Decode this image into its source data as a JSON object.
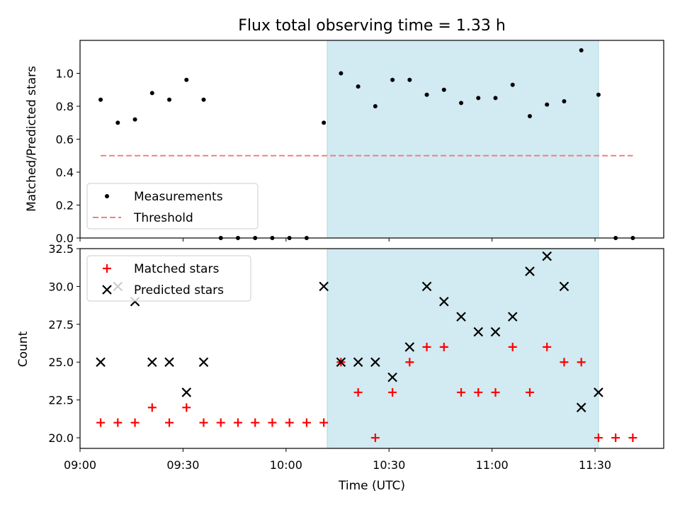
{
  "chart_data": [
    {
      "type": "scatter",
      "title": "Flux total observing time = 1.33 h",
      "xlabel": "",
      "ylabel": "Matched/Predicted stars",
      "xlim": [
        "09:00",
        "11:50"
      ],
      "ylim": [
        0,
        1.2
      ],
      "yticks": [
        0.0,
        0.2,
        0.4,
        0.6,
        0.8,
        1.0
      ],
      "ytick_labels": [
        "0.0",
        "0.2",
        "0.4",
        "0.6",
        "0.8",
        "1.0"
      ],
      "shaded_region": {
        "x": [
          "10:12",
          "11:31"
        ],
        "color": "#add8e6"
      },
      "legend_position": "lower-left",
      "series": [
        {
          "name": "Measurements",
          "marker": "dot",
          "color": "#000000",
          "points": [
            {
              "x": "09:06",
              "y": 0.84
            },
            {
              "x": "09:11",
              "y": 0.7
            },
            {
              "x": "09:16",
              "y": 0.72
            },
            {
              "x": "09:21",
              "y": 0.88
            },
            {
              "x": "09:26",
              "y": 0.84
            },
            {
              "x": "09:31",
              "y": 0.96
            },
            {
              "x": "09:36",
              "y": 0.84
            },
            {
              "x": "09:41",
              "y": 0.0
            },
            {
              "x": "09:46",
              "y": 0.0
            },
            {
              "x": "09:51",
              "y": 0.0
            },
            {
              "x": "09:56",
              "y": 0.0
            },
            {
              "x": "10:01",
              "y": 0.0
            },
            {
              "x": "10:06",
              "y": 0.0
            },
            {
              "x": "10:11",
              "y": 0.7
            },
            {
              "x": "10:16",
              "y": 1.0
            },
            {
              "x": "10:21",
              "y": 0.92
            },
            {
              "x": "10:26",
              "y": 0.8
            },
            {
              "x": "10:31",
              "y": 0.96
            },
            {
              "x": "10:36",
              "y": 0.96
            },
            {
              "x": "10:41",
              "y": 0.87
            },
            {
              "x": "10:46",
              "y": 0.9
            },
            {
              "x": "10:51",
              "y": 0.82
            },
            {
              "x": "10:56",
              "y": 0.85
            },
            {
              "x": "11:01",
              "y": 0.85
            },
            {
              "x": "11:06",
              "y": 0.93
            },
            {
              "x": "11:11",
              "y": 0.74
            },
            {
              "x": "11:16",
              "y": 0.81
            },
            {
              "x": "11:21",
              "y": 0.83
            },
            {
              "x": "11:26",
              "y": 1.14
            },
            {
              "x": "11:31",
              "y": 0.87
            },
            {
              "x": "11:36",
              "y": 0.0
            },
            {
              "x": "11:41",
              "y": 0.0
            }
          ]
        },
        {
          "name": "Threshold",
          "style": "dashed",
          "color": "#f08080",
          "points": [
            {
              "x": "09:06",
              "y": 0.5
            },
            {
              "x": "11:41",
              "y": 0.5
            }
          ]
        }
      ]
    },
    {
      "type": "scatter",
      "title": "",
      "xlabel": "Time (UTC)",
      "ylabel": "Count",
      "xlim": [
        "09:00",
        "11:50"
      ],
      "xticks": [
        "09:00",
        "09:30",
        "10:00",
        "10:30",
        "11:00",
        "11:30"
      ],
      "ylim": [
        19.3,
        32.5
      ],
      "yticks": [
        20.0,
        22.5,
        25.0,
        27.5,
        30.0,
        32.5
      ],
      "ytick_labels": [
        "20.0",
        "22.5",
        "25.0",
        "27.5",
        "30.0",
        "32.5"
      ],
      "shaded_region": {
        "x": [
          "10:12",
          "11:31"
        ],
        "color": "#add8e6"
      },
      "legend_position": "top-left",
      "series": [
        {
          "name": "Matched stars",
          "marker": "plus",
          "color": "#ff0000",
          "points": [
            {
              "x": "09:06",
              "y": 21
            },
            {
              "x": "09:11",
              "y": 21
            },
            {
              "x": "09:16",
              "y": 21
            },
            {
              "x": "09:21",
              "y": 22
            },
            {
              "x": "09:26",
              "y": 21
            },
            {
              "x": "09:31",
              "y": 22
            },
            {
              "x": "09:36",
              "y": 21
            },
            {
              "x": "09:41",
              "y": 21
            },
            {
              "x": "09:46",
              "y": 21
            },
            {
              "x": "09:51",
              "y": 21
            },
            {
              "x": "09:56",
              "y": 21
            },
            {
              "x": "10:01",
              "y": 21
            },
            {
              "x": "10:06",
              "y": 21
            },
            {
              "x": "10:11",
              "y": 21
            },
            {
              "x": "10:16",
              "y": 25
            },
            {
              "x": "10:21",
              "y": 23
            },
            {
              "x": "10:26",
              "y": 20
            },
            {
              "x": "10:31",
              "y": 23
            },
            {
              "x": "10:36",
              "y": 25
            },
            {
              "x": "10:41",
              "y": 26
            },
            {
              "x": "10:46",
              "y": 26
            },
            {
              "x": "10:51",
              "y": 23
            },
            {
              "x": "10:56",
              "y": 23
            },
            {
              "x": "11:01",
              "y": 23
            },
            {
              "x": "11:06",
              "y": 26
            },
            {
              "x": "11:11",
              "y": 23
            },
            {
              "x": "11:16",
              "y": 26
            },
            {
              "x": "11:21",
              "y": 25
            },
            {
              "x": "11:26",
              "y": 25
            },
            {
              "x": "11:31",
              "y": 20
            },
            {
              "x": "11:36",
              "y": 20
            },
            {
              "x": "11:41",
              "y": 20
            }
          ]
        },
        {
          "name": "Predicted stars",
          "marker": "x",
          "color": "#000000",
          "points": [
            {
              "x": "09:06",
              "y": 25
            },
            {
              "x": "09:11",
              "y": 30
            },
            {
              "x": "09:16",
              "y": 29
            },
            {
              "x": "09:21",
              "y": 25
            },
            {
              "x": "09:26",
              "y": 25
            },
            {
              "x": "09:31",
              "y": 23
            },
            {
              "x": "09:36",
              "y": 25
            },
            {
              "x": "10:11",
              "y": 30
            },
            {
              "x": "10:16",
              "y": 25
            },
            {
              "x": "10:21",
              "y": 25
            },
            {
              "x": "10:26",
              "y": 25
            },
            {
              "x": "10:31",
              "y": 24
            },
            {
              "x": "10:36",
              "y": 26
            },
            {
              "x": "10:41",
              "y": 30
            },
            {
              "x": "10:46",
              "y": 29
            },
            {
              "x": "10:51",
              "y": 28
            },
            {
              "x": "10:56",
              "y": 27
            },
            {
              "x": "11:01",
              "y": 27
            },
            {
              "x": "11:06",
              "y": 28
            },
            {
              "x": "11:11",
              "y": 31
            },
            {
              "x": "11:16",
              "y": 32
            },
            {
              "x": "11:21",
              "y": 30
            },
            {
              "x": "11:26",
              "y": 22
            },
            {
              "x": "11:31",
              "y": 23
            }
          ]
        }
      ]
    }
  ]
}
